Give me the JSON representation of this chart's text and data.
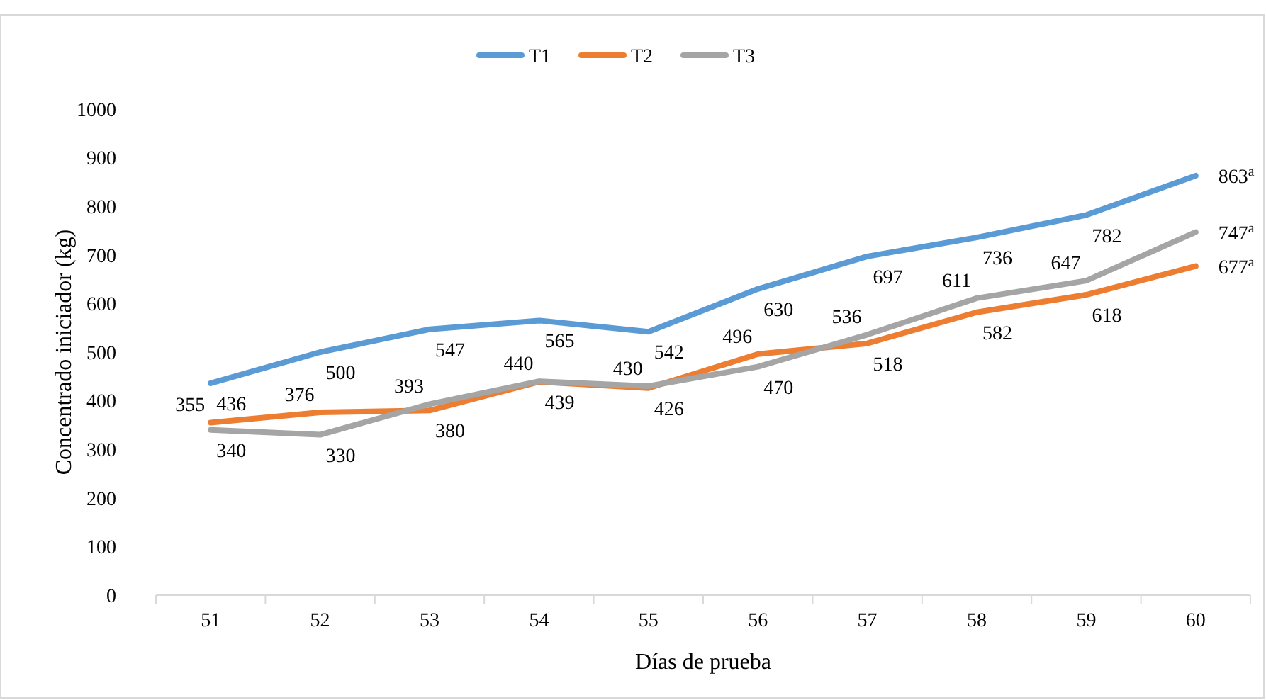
{
  "chart_data": {
    "type": "line",
    "xlabel": "Días de prueba",
    "ylabel": "Concentrado iniciador (kg)",
    "categories": [
      "51",
      "52",
      "53",
      "54",
      "55",
      "56",
      "57",
      "58",
      "59",
      "60"
    ],
    "ylim": [
      0,
      1000
    ],
    "yticks": [
      0,
      100,
      200,
      300,
      400,
      500,
      600,
      700,
      800,
      900,
      1000
    ],
    "grid": false,
    "legend": "top",
    "marker": "none",
    "line_style": "solid",
    "series": [
      {
        "name": "T1",
        "color": "#5b9bd5",
        "values": [
          436,
          500,
          547,
          565,
          542,
          630,
          697,
          736,
          782,
          863
        ],
        "value_labels": [
          "436",
          "500",
          "547",
          "565",
          "542",
          "630",
          "697",
          "736",
          "782",
          "863$^{a}$"
        ]
      },
      {
        "name": "T2",
        "color": "#ed7d31",
        "values": [
          355,
          376,
          380,
          439,
          426,
          496,
          518,
          582,
          618,
          677
        ],
        "value_labels": [
          "355",
          "376",
          "380",
          "439",
          "426",
          "496",
          "518",
          "582",
          "618",
          "677$^{a}$"
        ]
      },
      {
        "name": "T3",
        "color": "#a5a5a5",
        "values": [
          340,
          330,
          393,
          440,
          430,
          470,
          536,
          611,
          647,
          747
        ],
        "value_labels": [
          "340",
          "330",
          "393",
          "440",
          "430",
          "470",
          "536",
          "611",
          "647",
          "747$^{a}$"
        ]
      }
    ]
  }
}
